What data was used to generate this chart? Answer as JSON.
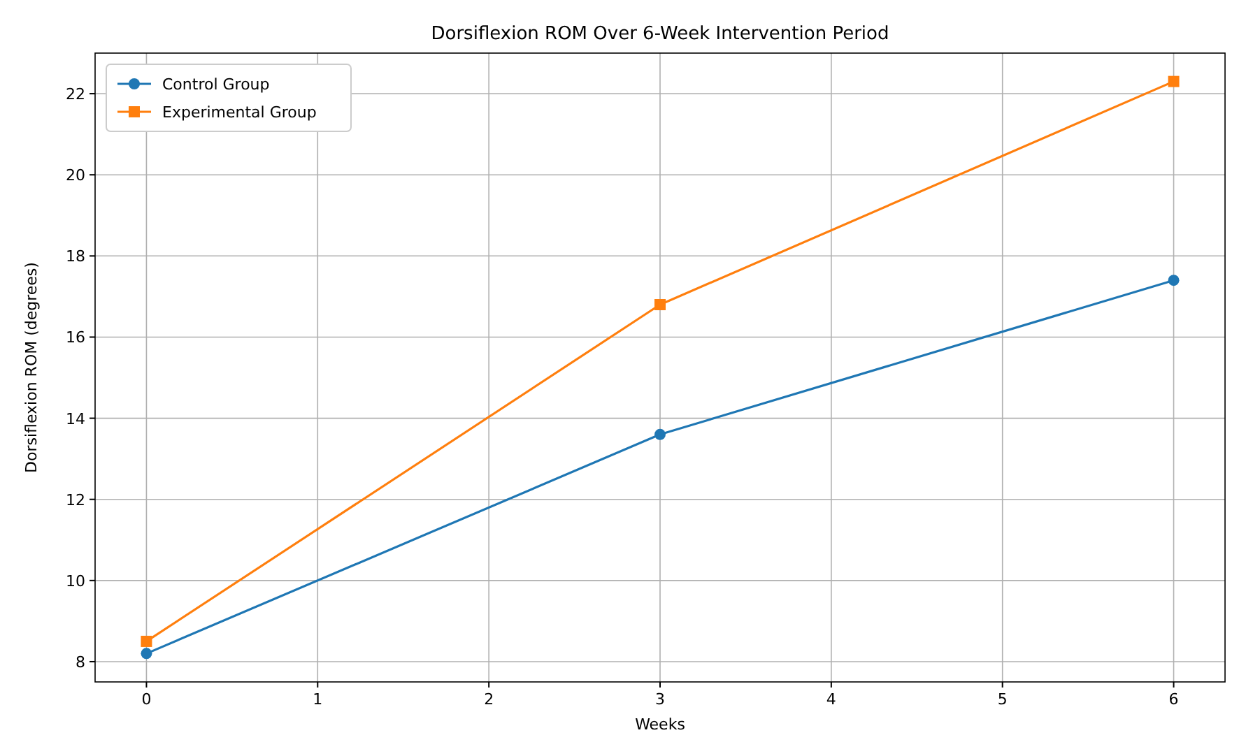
{
  "chart_data": {
    "type": "line",
    "title": "Dorsiflexion ROM Over 6-Week Intervention Period",
    "xlabel": "Weeks",
    "ylabel": "Dorsiflexion ROM (degrees)",
    "x": [
      0,
      3,
      6
    ],
    "series": [
      {
        "name": "Control Group",
        "color": "#1f77b4",
        "values": [
          8.2,
          13.6,
          17.4
        ],
        "marker": "circle"
      },
      {
        "name": "Experimental Group",
        "color": "#ff7f0e",
        "values": [
          8.5,
          16.8,
          22.3
        ],
        "marker": "square"
      }
    ],
    "xlim": [
      -0.3,
      6.3
    ],
    "xticks": [
      0,
      1,
      2,
      3,
      4,
      5,
      6
    ],
    "ylim": [
      7.5,
      23
    ],
    "yticks": [
      8,
      10,
      12,
      14,
      16,
      18,
      20,
      22
    ],
    "grid": true,
    "legend": "top left",
    "line_style": "solid"
  }
}
